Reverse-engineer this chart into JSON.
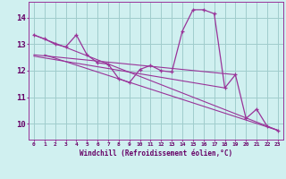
{
  "xlabel": "Windchill (Refroidissement éolien,°C)",
  "ylabel": "",
  "bg_color": "#d0f0f0",
  "grid_color": "#a0cccc",
  "line_color": "#993399",
  "xlim": [
    -0.5,
    23.5
  ],
  "ylim": [
    9.4,
    14.6
  ],
  "xticks": [
    0,
    1,
    2,
    3,
    4,
    5,
    6,
    7,
    8,
    9,
    10,
    11,
    12,
    13,
    14,
    15,
    16,
    17,
    18,
    19,
    20,
    21,
    22,
    23
  ],
  "yticks": [
    10,
    11,
    12,
    13,
    14
  ],
  "series": [
    [
      0,
      13.35
    ],
    [
      1,
      13.2
    ],
    [
      2,
      13.0
    ],
    [
      3,
      12.9
    ],
    [
      4,
      13.35
    ],
    [
      5,
      12.6
    ],
    [
      6,
      12.3
    ],
    [
      7,
      12.25
    ],
    [
      8,
      11.7
    ],
    [
      9,
      11.55
    ],
    [
      10,
      12.05
    ],
    [
      11,
      12.2
    ],
    [
      12,
      12.0
    ],
    [
      13,
      11.95
    ],
    [
      14,
      13.5
    ],
    [
      15,
      14.3
    ],
    [
      16,
      14.3
    ],
    [
      17,
      14.15
    ],
    [
      18,
      11.35
    ],
    [
      19,
      11.85
    ],
    [
      20,
      10.2
    ],
    [
      21,
      10.55
    ],
    [
      22,
      9.9
    ],
    [
      23,
      9.75
    ]
  ],
  "trend_lines": [
    {
      "start_x": 0,
      "start_y": 13.35,
      "end_x": 23,
      "end_y": 9.75
    },
    {
      "start_x": 1,
      "start_y": 12.6,
      "end_x": 23,
      "end_y": 9.75
    },
    {
      "start_x": 0,
      "start_y": 12.6,
      "end_x": 19,
      "end_y": 11.85
    },
    {
      "start_x": 0,
      "start_y": 12.55,
      "end_x": 18,
      "end_y": 11.35
    }
  ]
}
